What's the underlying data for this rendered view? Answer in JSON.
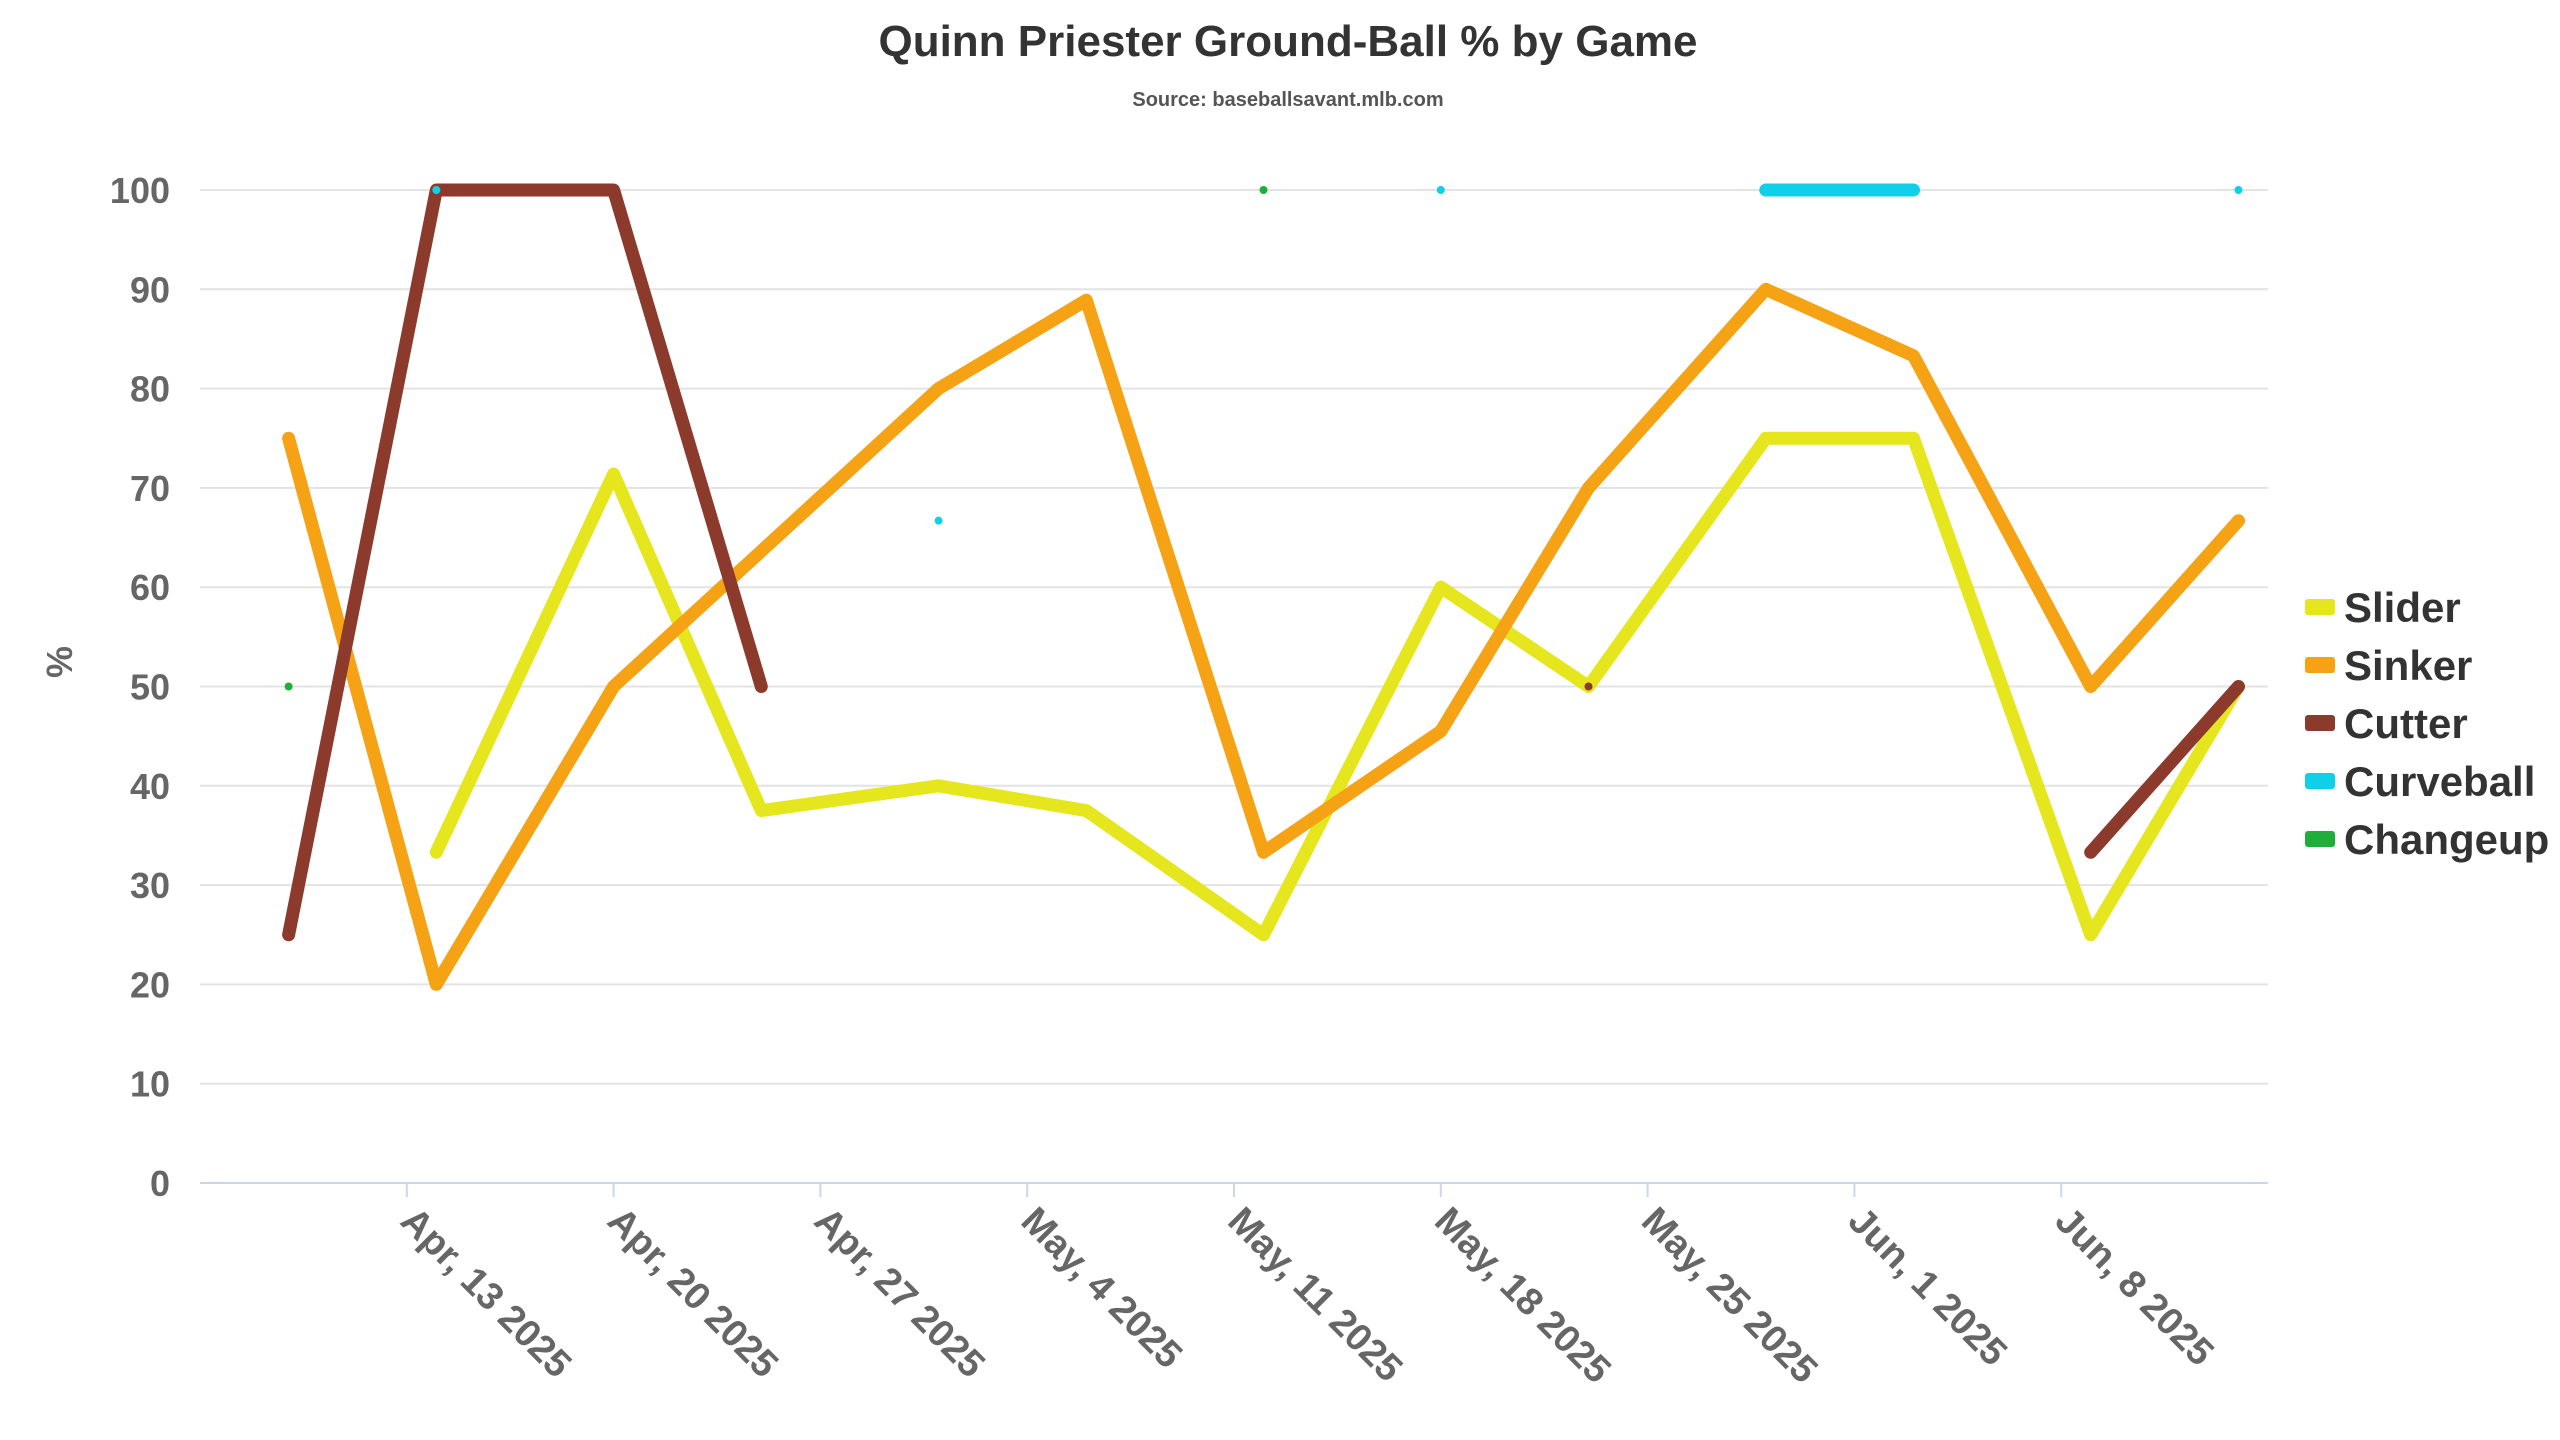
{
  "chart_data": {
    "type": "line",
    "title": "Quinn Priester Ground-Ball % by Game",
    "subtitle": "Source: baseballsavant.mlb.com",
    "xlabel": "",
    "ylabel": "%",
    "ylim": [
      0,
      100
    ],
    "yticks": [
      0,
      10,
      20,
      30,
      40,
      50,
      60,
      70,
      80,
      90,
      100
    ],
    "xlim": [
      "2025-04-06",
      "2025-06-15"
    ],
    "xticks": [
      {
        "date": "2025-04-13",
        "label": "Apr, 13 2025"
      },
      {
        "date": "2025-04-20",
        "label": "Apr, 20 2025"
      },
      {
        "date": "2025-04-27",
        "label": "Apr, 27 2025"
      },
      {
        "date": "2025-05-04",
        "label": "May, 4 2025"
      },
      {
        "date": "2025-05-11",
        "label": "May, 11 2025"
      },
      {
        "date": "2025-05-18",
        "label": "May, 18 2025"
      },
      {
        "date": "2025-05-25",
        "label": "May, 25 2025"
      },
      {
        "date": "2025-06-01",
        "label": "Jun, 1 2025"
      },
      {
        "date": "2025-06-08",
        "label": "Jun, 8 2025"
      }
    ],
    "grid": true,
    "legend_position": "right",
    "series": [
      {
        "name": "Slider",
        "color": "#e6e61f",
        "points": [
          {
            "x": "2025-04-14",
            "y": 33.3
          },
          {
            "x": "2025-04-20",
            "y": 71.4
          },
          {
            "x": "2025-04-25",
            "y": 37.5
          },
          {
            "x": "2025-05-01",
            "y": 40.0
          },
          {
            "x": "2025-05-06",
            "y": 37.5
          },
          {
            "x": "2025-05-12",
            "y": 25.0
          },
          {
            "x": "2025-05-18",
            "y": 60.0
          },
          {
            "x": "2025-05-23",
            "y": 50.0
          },
          {
            "x": "2025-05-29",
            "y": 75.0
          },
          {
            "x": "2025-06-03",
            "y": 75.0
          },
          {
            "x": "2025-06-09",
            "y": 25.0
          },
          {
            "x": "2025-06-14",
            "y": 50.0
          }
        ]
      },
      {
        "name": "Sinker",
        "color": "#f5a214",
        "points": [
          {
            "x": "2025-04-09",
            "y": 75.0
          },
          {
            "x": "2025-04-14",
            "y": 20.0
          },
          {
            "x": "2025-04-20",
            "y": 50.0
          },
          {
            "x": "2025-05-01",
            "y": 80.0
          },
          {
            "x": "2025-05-06",
            "y": 88.9
          },
          {
            "x": "2025-05-12",
            "y": 33.3
          },
          {
            "x": "2025-05-18",
            "y": 45.5
          },
          {
            "x": "2025-05-23",
            "y": 70.0
          },
          {
            "x": "2025-05-29",
            "y": 90.0
          },
          {
            "x": "2025-06-03",
            "y": 83.3
          },
          {
            "x": "2025-06-09",
            "y": 50.0
          },
          {
            "x": "2025-06-14",
            "y": 66.7
          }
        ]
      },
      {
        "name": "Cutter",
        "color": "#8b3a2b",
        "points": [
          {
            "x": "2025-04-09",
            "y": 25.0
          },
          {
            "x": "2025-04-14",
            "y": 100.0
          },
          {
            "x": "2025-04-20",
            "y": 100.0
          },
          {
            "x": "2025-04-25",
            "y": 50.0
          },
          {
            "x": "2025-05-23",
            "y": 50.0
          },
          {
            "x": "2025-06-09",
            "y": 33.3
          },
          {
            "x": "2025-06-14",
            "y": 50.0
          }
        ],
        "breaks_after": [
          3,
          4
        ]
      },
      {
        "name": "Curveball",
        "color": "#0fd0e8",
        "points": [
          {
            "x": "2025-04-14",
            "y": 100.0
          },
          {
            "x": "2025-05-01",
            "y": 66.7
          },
          {
            "x": "2025-05-18",
            "y": 100.0
          },
          {
            "x": "2025-05-29",
            "y": 100.0
          },
          {
            "x": "2025-06-03",
            "y": 100.0
          },
          {
            "x": "2025-06-14",
            "y": 100.0
          }
        ],
        "breaks_after": [
          0,
          1,
          2,
          4
        ]
      },
      {
        "name": "Changeup",
        "color": "#1fae3a",
        "points": [
          {
            "x": "2025-04-09",
            "y": 50.0
          },
          {
            "x": "2025-05-12",
            "y": 100.0
          }
        ],
        "breaks_after": [
          0
        ]
      }
    ]
  }
}
